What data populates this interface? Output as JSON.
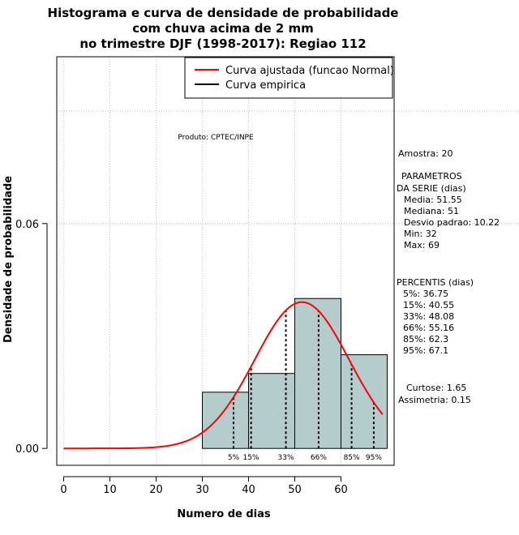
{
  "chart_data": {
    "type": "bar",
    "title": [
      "Histograma e curva de densidade de probabilidade",
      "com chuva acima de 2 mm",
      "no trimestre DJF (1998-2017): Regiao 112"
    ],
    "xlabel": "Numero de dias",
    "ylabel": "Densidade de probabilidade",
    "xlim": [
      -1.5,
      71.5
    ],
    "ylim": [
      -0.0045,
      0.1045
    ],
    "x_ticks": [
      0,
      10,
      20,
      30,
      40,
      50,
      60
    ],
    "x_tick_labels": [
      "0",
      "10",
      "20",
      "30",
      "40",
      "50",
      "60"
    ],
    "y_ticks": [
      0.0,
      0.06
    ],
    "y_tick_labels": [
      "0.00",
      "0.06"
    ],
    "grid_y": [
      0.06,
      0.09
    ],
    "hist": {
      "bins": [
        {
          "x0": 30,
          "x1": 40,
          "density": 0.015
        },
        {
          "x0": 40,
          "x1": 50,
          "density": 0.02
        },
        {
          "x0": 50,
          "x1": 60,
          "density": 0.04
        },
        {
          "x0": 60,
          "x1": 70,
          "density": 0.025
        }
      ],
      "fill": "#b4cccc"
    },
    "normal_curve": {
      "mean": 51.55,
      "sd": 10.22,
      "x_from": 0,
      "x_to": 69,
      "color": "#ff0000"
    },
    "percentile_lines": [
      {
        "label": "5%",
        "x": 36.75
      },
      {
        "label": "15%",
        "x": 40.55
      },
      {
        "label": "33%",
        "x": 48.08
      },
      {
        "label": "66%",
        "x": 55.16
      },
      {
        "label": "85%",
        "x": 62.3
      },
      {
        "label": "95%",
        "x": 67.1
      }
    ],
    "legend": {
      "position": "top-right",
      "entries": [
        {
          "label": "Curva ajustada (funcao Normal)",
          "color": "#ff0000"
        },
        {
          "label": "Curva empirica",
          "color": "#000000"
        }
      ]
    },
    "annotation": "Produto: CPTEC/INPE"
  },
  "stats_panel": {
    "amostra": "Amostra: 20",
    "param_header": [
      "PARAMETROS",
      "DA SERIE (dias)"
    ],
    "params": [
      "Media: 51.55",
      "Mediana: 51",
      "Desvio padrao: 10.22",
      "Min: 32",
      "Max: 69"
    ],
    "percentis_header": "PERCENTIS (dias)",
    "percentis": [
      "5%: 36.75",
      "15%: 40.55",
      "33%: 48.08",
      "66%: 55.16",
      "85%: 62.3",
      "95%: 67.1"
    ],
    "shape": [
      "Curtose: 1.65",
      "Assimetria: 0.15"
    ]
  }
}
